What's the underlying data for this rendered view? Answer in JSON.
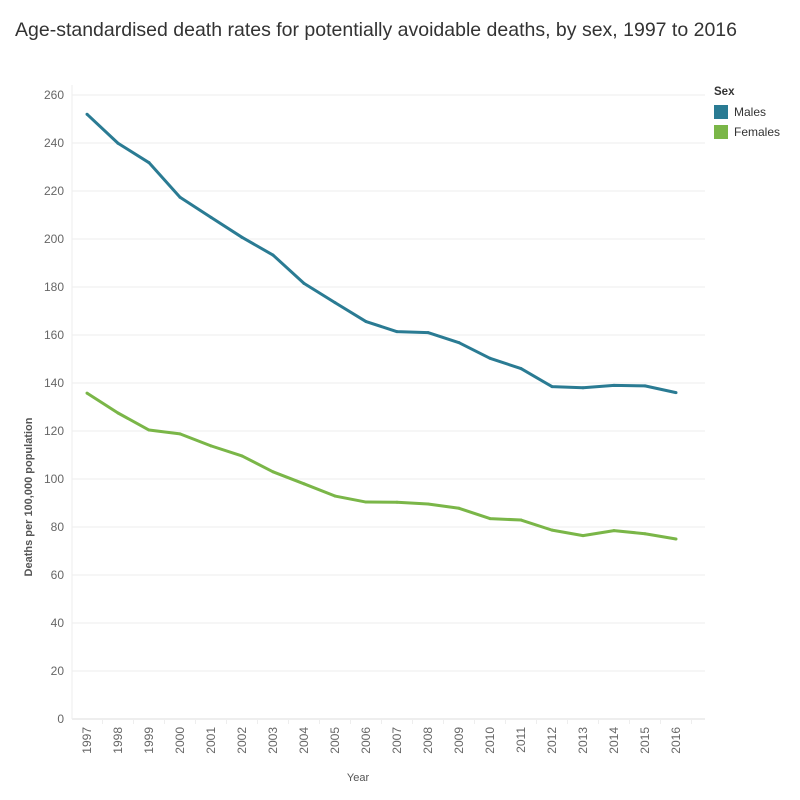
{
  "chart_data": {
    "type": "line",
    "title": "Age-standardised death rates for potentially avoidable deaths, by sex, 1997 to 2016",
    "xlabel": "Year",
    "ylabel": "Deaths per 100,000 population",
    "ylim": [
      0,
      260
    ],
    "yticks": [
      0,
      20,
      40,
      60,
      80,
      100,
      120,
      140,
      160,
      180,
      200,
      220,
      240,
      260
    ],
    "grid": true,
    "legend_position": "top-right",
    "legend_title": "Sex",
    "categories": [
      "1997",
      "1998",
      "1999",
      "2000",
      "2001",
      "2002",
      "2003",
      "2004",
      "2005",
      "2006",
      "2007",
      "2008",
      "2009",
      "2010",
      "2011",
      "2012",
      "2013",
      "2014",
      "2015",
      "2016"
    ],
    "series": [
      {
        "name": "Males",
        "color": "#2a7b93",
        "values": [
          252,
          239.9,
          231.8,
          217.4,
          209,
          200.7,
          193.3,
          181.5,
          173.5,
          165.6,
          161.4,
          161,
          156.8,
          150.3,
          146,
          138.5,
          138,
          139,
          138.8,
          136
        ]
      },
      {
        "name": "Females",
        "color": "#7ab648",
        "values": [
          135.8,
          127.5,
          120.4,
          118.8,
          113.8,
          109.6,
          103,
          98,
          92.9,
          90.4,
          90.3,
          89.6,
          87.8,
          83.5,
          82.9,
          78.7,
          76.4,
          78.5,
          77.2,
          75
        ]
      }
    ]
  }
}
